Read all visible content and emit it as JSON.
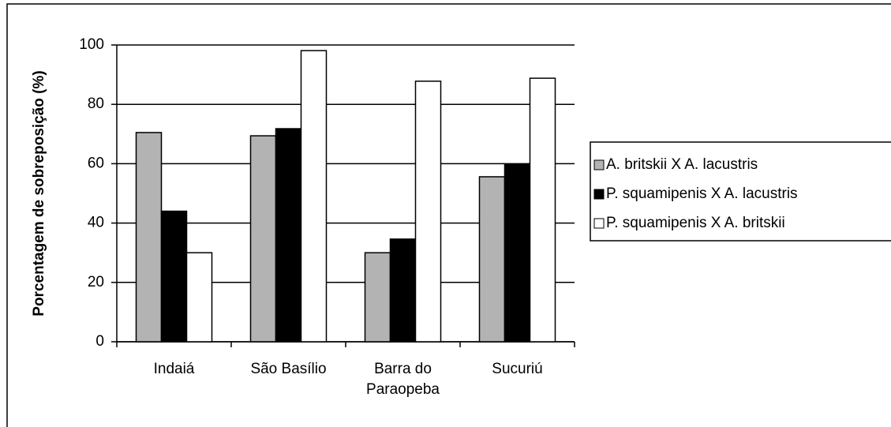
{
  "chart_data": {
    "type": "bar",
    "y_label": "Porcentagem de sobreposição (%)",
    "categories": [
      "Indaiá",
      "São Basílio",
      "Barra do Paraopeba",
      "Sucuriú"
    ],
    "series": [
      {
        "name": "A. britskii X A. lacustris",
        "color": "#b3b3b3",
        "values": [
          70.5,
          69.4,
          30,
          55.6
        ]
      },
      {
        "name": "P. squamipenis X A. lacustris",
        "color": "#000000",
        "values": [
          44,
          71.8,
          34.6,
          59.8
        ]
      },
      {
        "name": "P. squamipenis X A. britskii",
        "color": "#ffffff",
        "values": [
          30,
          98.1,
          87.8,
          88.8
        ]
      }
    ],
    "ylim": [
      0,
      100
    ],
    "yticks": [
      0,
      20,
      40,
      60,
      80,
      100
    ],
    "grid": true,
    "legend": "right"
  }
}
